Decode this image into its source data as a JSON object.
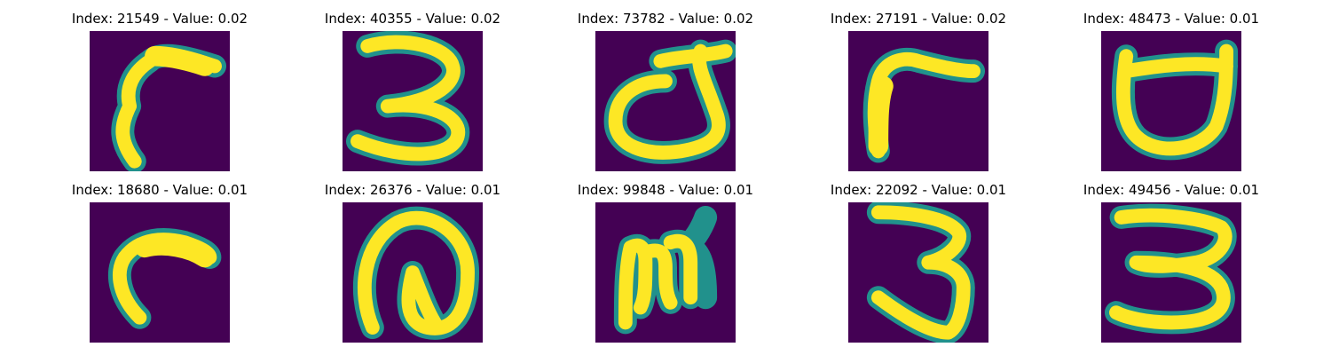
{
  "colors": {
    "background": "#440154",
    "stroke_outer": "#21918c",
    "stroke_inner": "#fde725",
    "stroke_mid": "#5ec962"
  },
  "panels": [
    {
      "title": "Index: 21549 - Value: 0.02",
      "glyph": "hook-r"
    },
    {
      "title": "Index: 40355 - Value: 0.02",
      "glyph": "three-a"
    },
    {
      "title": "Index: 73782 - Value: 0.02",
      "glyph": "d-shape"
    },
    {
      "title": "Index: 27191 - Value: 0.02",
      "glyph": "r-shape"
    },
    {
      "title": "Index: 48473 - Value: 0.01",
      "glyph": "u-bar"
    },
    {
      "title": "Index: 18680 - Value: 0.01",
      "glyph": "hook-c"
    },
    {
      "title": "Index: 26376 - Value: 0.01",
      "glyph": "at-shape"
    },
    {
      "title": "Index: 99848 - Value: 0.01",
      "glyph": "m-shape"
    },
    {
      "title": "Index: 22092 - Value: 0.01",
      "glyph": "three-b"
    },
    {
      "title": "Index: 49456 - Value: 0.01",
      "glyph": "three-c"
    }
  ]
}
